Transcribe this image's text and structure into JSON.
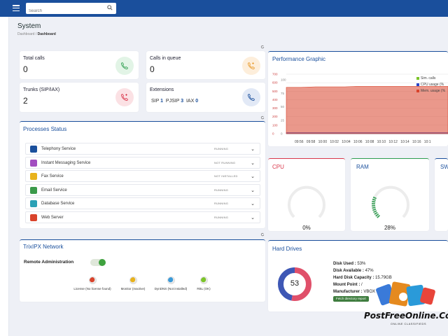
{
  "header": {
    "search_placeholder": "Search"
  },
  "page": {
    "title": "System",
    "breadcrumb_parent": "Dashboard",
    "breadcrumb_sep": "/",
    "breadcrumb_current": "Dashboard"
  },
  "stats": {
    "total_calls": {
      "label": "Total calls",
      "value": "0",
      "color": "#2e9e4f"
    },
    "calls_in_queue": {
      "label": "Calls in queue",
      "value": "0",
      "color": "#e89a2c"
    },
    "trunks": {
      "label": "Trunks (SIP/IAX)",
      "value": "2",
      "color": "#d9374b"
    },
    "extensions": {
      "label": "Extensions",
      "sip_label": "SIP",
      "sip_value": "1",
      "pjsip_label": "PJSIP",
      "pjsip_value": "3",
      "iax_label": "IAX",
      "iax_value": "0",
      "color": "#1a4f9c"
    }
  },
  "processes": {
    "title": "Processes Status",
    "items": [
      {
        "name": "Telephony Service",
        "status": "RUNNING",
        "icon": "telephony-icon",
        "color": "#1a4f9c"
      },
      {
        "name": "Instant Messaging Service",
        "status": "NOT RUNNING",
        "icon": "messaging-icon",
        "color": "#a24ec0"
      },
      {
        "name": "Fax Service",
        "status": "NOT INSTALLED",
        "icon": "fax-icon",
        "color": "#e8b21c"
      },
      {
        "name": "Email Service",
        "status": "RUNNING",
        "icon": "email-icon",
        "color": "#3a9a4a"
      },
      {
        "name": "Database Service",
        "status": "RUNNING",
        "icon": "database-icon",
        "color": "#2aa0b5"
      },
      {
        "name": "Web Server",
        "status": "RUNNING",
        "icon": "web-icon",
        "color": "#d9432b"
      }
    ]
  },
  "network": {
    "title": "TrixIPX Network",
    "remote_admin_label": "Remote Administration",
    "remote_admin_enabled": true,
    "indicators": [
      {
        "label": "License (No license found)",
        "color": "#d9432b"
      },
      {
        "label": "Monitor (Inactive)",
        "color": "#e8b21c"
      },
      {
        "label": "DynDNS (Not installed)",
        "color": "#3a9ad9"
      },
      {
        "label": "RBL (OK)",
        "color": "#7cc42a"
      }
    ]
  },
  "performance": {
    "title": "Performance Graphic",
    "legend": [
      "Sim. calls",
      "CPU usage (%",
      "Mem. usage (%"
    ],
    "legend_colors": [
      "#7cc42a",
      "#2a46c8",
      "#d9432b"
    ]
  },
  "chart_data": {
    "type": "area",
    "title": "Performance Graphic",
    "x": [
      "09:56",
      "09:58",
      "10:00",
      "10:02",
      "10:04",
      "10:06",
      "10:08",
      "10:10",
      "10:12",
      "10:14",
      "10:16",
      "10:1"
    ],
    "left_ticks": [
      "700",
      "600",
      "500",
      "400",
      "300",
      "200",
      "100",
      "0"
    ],
    "right_ticks": [
      "100",
      "75",
      "50",
      "25",
      "0"
    ],
    "series": [
      {
        "name": "Sim. calls",
        "values": [
          0,
          0,
          0,
          0,
          0,
          0,
          0,
          0,
          0,
          0,
          0,
          0
        ]
      },
      {
        "name": "CPU usage (%",
        "values": [
          2,
          2,
          2,
          2,
          2,
          2,
          2,
          2,
          2,
          2,
          2,
          2
        ]
      },
      {
        "name": "Mem. usage (%",
        "values": [
          86,
          86,
          87,
          87,
          87,
          88,
          88,
          88,
          88,
          88,
          88,
          88
        ]
      }
    ],
    "grid": true
  },
  "gauges": {
    "cpu": {
      "label": "CPU",
      "value": "0%",
      "fraction": 0.0,
      "color": "#d9374b"
    },
    "ram": {
      "label": "RAM",
      "value": "28%",
      "fraction": 0.28,
      "color": "#2e9e4f"
    },
    "swap": {
      "label": "SW"
    }
  },
  "hard_drives": {
    "title": "Hard Drives",
    "donut_value": "53",
    "used_fraction": 0.53,
    "disk_used_label": "Disk Used :",
    "disk_used_value": "53%",
    "disk_available_label": "Disk Available :",
    "disk_available_value": "47%",
    "capacity_label": "Hard Disk Capacity :",
    "capacity_value": "15.79GB",
    "mount_label": "Mount Point :",
    "mount_value": "/",
    "manufacturer_label": "Manufacturer :",
    "manufacturer_value": "VBOX",
    "fetch_button": "Fetch directory report",
    "used_color": "#e0506a",
    "free_color": "#3e57b5"
  },
  "watermark": {
    "brand": "PostFreeOnline.Com",
    "tagline": "ONLINE CLASSIFIEDS"
  }
}
